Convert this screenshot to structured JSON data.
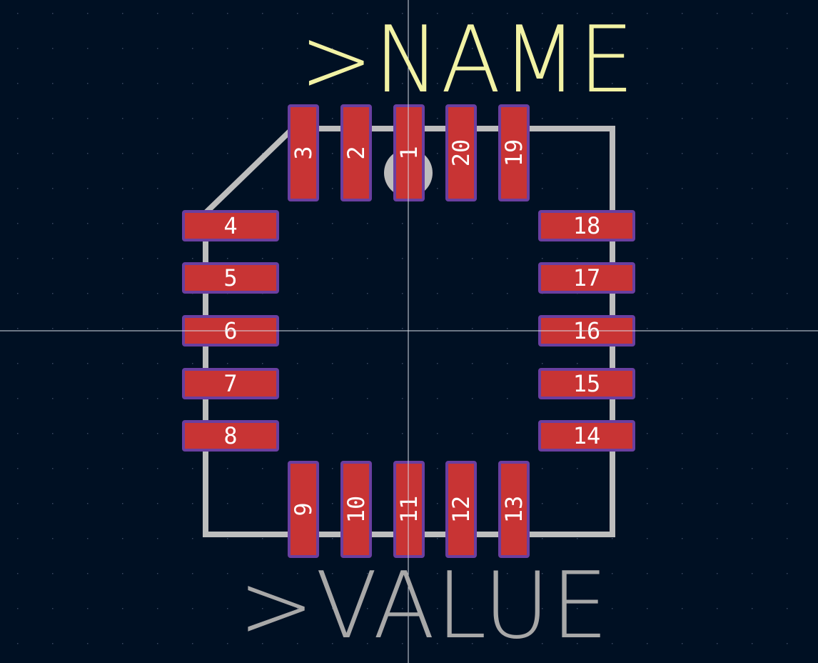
{
  "colors": {
    "background": "#001023",
    "grid_dot": "#3a4660",
    "crosshair": "#d8dce4",
    "silkscreen": "#bdbdbd",
    "name_text": "#f2f2a4",
    "value_text": "#a8a8a8",
    "pad_fill": "#c83434",
    "pad_outline": "#6a3fa0",
    "pad_label": "#ffffff"
  },
  "reference": {
    "name": ">NAME",
    "value": ">VALUE"
  },
  "pads": [
    {
      "number": "1",
      "side": "top"
    },
    {
      "number": "2",
      "side": "top"
    },
    {
      "number": "3",
      "side": "top"
    },
    {
      "number": "4",
      "side": "left"
    },
    {
      "number": "5",
      "side": "left"
    },
    {
      "number": "6",
      "side": "left"
    },
    {
      "number": "7",
      "side": "left"
    },
    {
      "number": "8",
      "side": "left"
    },
    {
      "number": "9",
      "side": "bottom"
    },
    {
      "number": "10",
      "side": "bottom"
    },
    {
      "number": "11",
      "side": "bottom"
    },
    {
      "number": "12",
      "side": "bottom"
    },
    {
      "number": "13",
      "side": "bottom"
    },
    {
      "number": "14",
      "side": "right"
    },
    {
      "number": "15",
      "side": "right"
    },
    {
      "number": "16",
      "side": "right"
    },
    {
      "number": "17",
      "side": "right"
    },
    {
      "number": "18",
      "side": "right"
    },
    {
      "number": "19",
      "side": "top"
    },
    {
      "number": "20",
      "side": "top"
    }
  ],
  "pin1_marker_icon": "pin1-dot-icon"
}
